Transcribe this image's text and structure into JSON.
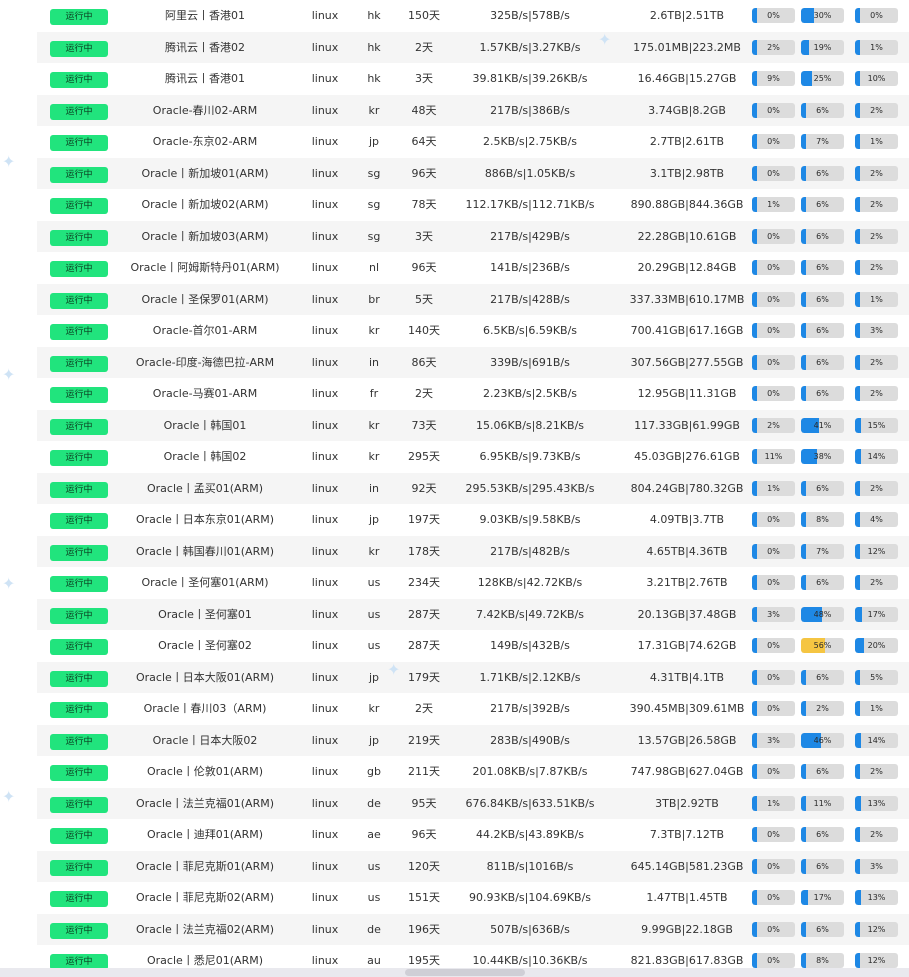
{
  "status_color": "#21e47d",
  "bar_color": "#1e88e5",
  "warn_color": "#f5c542",
  "rows": [
    {
      "status": "运行中",
      "name": "阿里云丨香港01",
      "os": "linux",
      "loc": "hk",
      "uptime": "150天",
      "net": "325B/s|578B/s",
      "traffic": "2.6TB|2.51TB",
      "cpu": 0,
      "cpu_label": "0%",
      "mem": 30,
      "mem_label": "30%",
      "disk": 0,
      "disk_label": "0%"
    },
    {
      "status": "运行中",
      "name": "腾讯云丨香港02",
      "os": "linux",
      "loc": "hk",
      "uptime": "2天",
      "net": "1.57KB/s|3.27KB/s",
      "traffic": "175.01MB|223.2MB",
      "cpu": 2,
      "cpu_label": "2%",
      "mem": 19,
      "mem_label": "19%",
      "disk": 1,
      "disk_label": "1%"
    },
    {
      "status": "运行中",
      "name": "腾讯云丨香港01",
      "os": "linux",
      "loc": "hk",
      "uptime": "3天",
      "net": "39.81KB/s|39.26KB/s",
      "traffic": "16.46GB|15.27GB",
      "cpu": 9,
      "cpu_label": "9%",
      "mem": 25,
      "mem_label": "25%",
      "disk": 10,
      "disk_label": "10%"
    },
    {
      "status": "运行中",
      "name": "Oracle-春川02-ARM",
      "os": "linux",
      "loc": "kr",
      "uptime": "48天",
      "net": "217B/s|386B/s",
      "traffic": "3.74GB|8.2GB",
      "cpu": 0,
      "cpu_label": "0%",
      "mem": 6,
      "mem_label": "6%",
      "disk": 2,
      "disk_label": "2%"
    },
    {
      "status": "运行中",
      "name": "Oracle-东京02-ARM",
      "os": "linux",
      "loc": "jp",
      "uptime": "64天",
      "net": "2.5KB/s|2.75KB/s",
      "traffic": "2.7TB|2.61TB",
      "cpu": 0,
      "cpu_label": "0%",
      "mem": 7,
      "mem_label": "7%",
      "disk": 1,
      "disk_label": "1%"
    },
    {
      "status": "运行中",
      "name": "Oracle丨新加坡01(ARM)",
      "os": "linux",
      "loc": "sg",
      "uptime": "96天",
      "net": "886B/s|1.05KB/s",
      "traffic": "3.1TB|2.98TB",
      "cpu": 0,
      "cpu_label": "0%",
      "mem": 6,
      "mem_label": "6%",
      "disk": 2,
      "disk_label": "2%"
    },
    {
      "status": "运行中",
      "name": "Oracle丨新加坡02(ARM)",
      "os": "linux",
      "loc": "sg",
      "uptime": "78天",
      "net": "112.17KB/s|112.71KB/s",
      "traffic": "890.88GB|844.36GB",
      "cpu": 1,
      "cpu_label": "1%",
      "mem": 6,
      "mem_label": "6%",
      "disk": 2,
      "disk_label": "2%"
    },
    {
      "status": "运行中",
      "name": "Oracle丨新加坡03(ARM)",
      "os": "linux",
      "loc": "sg",
      "uptime": "3天",
      "net": "217B/s|429B/s",
      "traffic": "22.28GB|10.61GB",
      "cpu": 0,
      "cpu_label": "0%",
      "mem": 6,
      "mem_label": "6%",
      "disk": 2,
      "disk_label": "2%"
    },
    {
      "status": "运行中",
      "name": "Oracle丨阿姆斯特丹01(ARM)",
      "os": "linux",
      "loc": "nl",
      "uptime": "96天",
      "net": "141B/s|236B/s",
      "traffic": "20.29GB|12.84GB",
      "cpu": 0,
      "cpu_label": "0%",
      "mem": 6,
      "mem_label": "6%",
      "disk": 2,
      "disk_label": "2%"
    },
    {
      "status": "运行中",
      "name": "Oracle丨圣保罗01(ARM)",
      "os": "linux",
      "loc": "br",
      "uptime": "5天",
      "net": "217B/s|428B/s",
      "traffic": "337.33MB|610.17MB",
      "cpu": 0,
      "cpu_label": "0%",
      "mem": 6,
      "mem_label": "6%",
      "disk": 1,
      "disk_label": "1%"
    },
    {
      "status": "运行中",
      "name": "Oracle-首尔01-ARM",
      "os": "linux",
      "loc": "kr",
      "uptime": "140天",
      "net": "6.5KB/s|6.59KB/s",
      "traffic": "700.41GB|617.16GB",
      "cpu": 0,
      "cpu_label": "0%",
      "mem": 6,
      "mem_label": "6%",
      "disk": 3,
      "disk_label": "3%"
    },
    {
      "status": "运行中",
      "name": "Oracle-印度-海德巴拉-ARM",
      "os": "linux",
      "loc": "in",
      "uptime": "86天",
      "net": "339B/s|691B/s",
      "traffic": "307.56GB|277.55GB",
      "cpu": 0,
      "cpu_label": "0%",
      "mem": 6,
      "mem_label": "6%",
      "disk": 2,
      "disk_label": "2%"
    },
    {
      "status": "运行中",
      "name": "Oracle-马赛01-ARM",
      "os": "linux",
      "loc": "fr",
      "uptime": "2天",
      "net": "2.23KB/s|2.5KB/s",
      "traffic": "12.95GB|11.31GB",
      "cpu": 0,
      "cpu_label": "0%",
      "mem": 6,
      "mem_label": "6%",
      "disk": 2,
      "disk_label": "2%"
    },
    {
      "status": "运行中",
      "name": "Oracle丨韩国01",
      "os": "linux",
      "loc": "kr",
      "uptime": "73天",
      "net": "15.06KB/s|8.21KB/s",
      "traffic": "117.33GB|61.99GB",
      "cpu": 2,
      "cpu_label": "2%",
      "mem": 41,
      "mem_label": "41%",
      "disk": 15,
      "disk_label": "15%"
    },
    {
      "status": "运行中",
      "name": "Oracle丨韩国02",
      "os": "linux",
      "loc": "kr",
      "uptime": "295天",
      "net": "6.95KB/s|9.73KB/s",
      "traffic": "45.03GB|276.61GB",
      "cpu": 11,
      "cpu_label": "11%",
      "mem": 38,
      "mem_label": "38%",
      "disk": 14,
      "disk_label": "14%"
    },
    {
      "status": "运行中",
      "name": "Oracle丨孟买01(ARM)",
      "os": "linux",
      "loc": "in",
      "uptime": "92天",
      "net": "295.53KB/s|295.43KB/s",
      "traffic": "804.24GB|780.32GB",
      "cpu": 1,
      "cpu_label": "1%",
      "mem": 6,
      "mem_label": "6%",
      "disk": 2,
      "disk_label": "2%"
    },
    {
      "status": "运行中",
      "name": "Oracle丨日本东京01(ARM)",
      "os": "linux",
      "loc": "jp",
      "uptime": "197天",
      "net": "9.03KB/s|9.58KB/s",
      "traffic": "4.09TB|3.7TB",
      "cpu": 0,
      "cpu_label": "0%",
      "mem": 8,
      "mem_label": "8%",
      "disk": 4,
      "disk_label": "4%"
    },
    {
      "status": "运行中",
      "name": "Oracle丨韩国春川01(ARM)",
      "os": "linux",
      "loc": "kr",
      "uptime": "178天",
      "net": "217B/s|482B/s",
      "traffic": "4.65TB|4.36TB",
      "cpu": 0,
      "cpu_label": "0%",
      "mem": 7,
      "mem_label": "7%",
      "disk": 12,
      "disk_label": "12%"
    },
    {
      "status": "运行中",
      "name": "Oracle丨圣何塞01(ARM)",
      "os": "linux",
      "loc": "us",
      "uptime": "234天",
      "net": "128KB/s|42.72KB/s",
      "traffic": "3.21TB|2.76TB",
      "cpu": 0,
      "cpu_label": "0%",
      "mem": 6,
      "mem_label": "6%",
      "disk": 2,
      "disk_label": "2%"
    },
    {
      "status": "运行中",
      "name": "Oracle丨圣何塞01",
      "os": "linux",
      "loc": "us",
      "uptime": "287天",
      "net": "7.42KB/s|49.72KB/s",
      "traffic": "20.13GB|37.48GB",
      "cpu": 3,
      "cpu_label": "3%",
      "mem": 48,
      "mem_label": "48%",
      "disk": 17,
      "disk_label": "17%"
    },
    {
      "status": "运行中",
      "name": "Oracle丨圣何塞02",
      "os": "linux",
      "loc": "us",
      "uptime": "287天",
      "net": "149B/s|432B/s",
      "traffic": "17.31GB|74.62GB",
      "cpu": 0,
      "cpu_label": "0%",
      "mem": 56,
      "mem_label": "56%",
      "disk": 20,
      "disk_label": "20%"
    },
    {
      "status": "运行中",
      "name": "Oracle丨日本大阪01(ARM)",
      "os": "linux",
      "loc": "jp",
      "uptime": "179天",
      "net": "1.71KB/s|2.12KB/s",
      "traffic": "4.31TB|4.1TB",
      "cpu": 0,
      "cpu_label": "0%",
      "mem": 6,
      "mem_label": "6%",
      "disk": 5,
      "disk_label": "5%"
    },
    {
      "status": "运行中",
      "name": "Oracle丨春川03（ARM)",
      "os": "linux",
      "loc": "kr",
      "uptime": "2天",
      "net": "217B/s|392B/s",
      "traffic": "390.45MB|309.61MB",
      "cpu": 0,
      "cpu_label": "0%",
      "mem": 2,
      "mem_label": "2%",
      "disk": 1,
      "disk_label": "1%"
    },
    {
      "status": "运行中",
      "name": "Oracle丨日本大阪02",
      "os": "linux",
      "loc": "jp",
      "uptime": "219天",
      "net": "283B/s|490B/s",
      "traffic": "13.57GB|26.58GB",
      "cpu": 3,
      "cpu_label": "3%",
      "mem": 46,
      "mem_label": "46%",
      "disk": 14,
      "disk_label": "14%"
    },
    {
      "status": "运行中",
      "name": "Oracle丨伦敦01(ARM)",
      "os": "linux",
      "loc": "gb",
      "uptime": "211天",
      "net": "201.08KB/s|7.87KB/s",
      "traffic": "747.98GB|627.04GB",
      "cpu": 0,
      "cpu_label": "0%",
      "mem": 6,
      "mem_label": "6%",
      "disk": 2,
      "disk_label": "2%"
    },
    {
      "status": "运行中",
      "name": "Oracle丨法兰克福01(ARM)",
      "os": "linux",
      "loc": "de",
      "uptime": "95天",
      "net": "676.84KB/s|633.51KB/s",
      "traffic": "3TB|2.92TB",
      "cpu": 1,
      "cpu_label": "1%",
      "mem": 11,
      "mem_label": "11%",
      "disk": 13,
      "disk_label": "13%"
    },
    {
      "status": "运行中",
      "name": "Oracle丨迪拜01(ARM)",
      "os": "linux",
      "loc": "ae",
      "uptime": "96天",
      "net": "44.2KB/s|43.89KB/s",
      "traffic": "7.3TB|7.12TB",
      "cpu": 0,
      "cpu_label": "0%",
      "mem": 6,
      "mem_label": "6%",
      "disk": 2,
      "disk_label": "2%"
    },
    {
      "status": "运行中",
      "name": "Oracle丨菲尼克斯01(ARM)",
      "os": "linux",
      "loc": "us",
      "uptime": "120天",
      "net": "811B/s|1016B/s",
      "traffic": "645.14GB|581.23GB",
      "cpu": 0,
      "cpu_label": "0%",
      "mem": 6,
      "mem_label": "6%",
      "disk": 3,
      "disk_label": "3%"
    },
    {
      "status": "运行中",
      "name": "Oracle丨菲尼克斯02(ARM)",
      "os": "linux",
      "loc": "us",
      "uptime": "151天",
      "net": "90.93KB/s|104.69KB/s",
      "traffic": "1.47TB|1.45TB",
      "cpu": 0,
      "cpu_label": "0%",
      "mem": 17,
      "mem_label": "17%",
      "disk": 13,
      "disk_label": "13%"
    },
    {
      "status": "运行中",
      "name": "Oracle丨法兰克福02(ARM)",
      "os": "linux",
      "loc": "de",
      "uptime": "196天",
      "net": "507B/s|636B/s",
      "traffic": "9.99GB|22.18GB",
      "cpu": 0,
      "cpu_label": "0%",
      "mem": 6,
      "mem_label": "6%",
      "disk": 12,
      "disk_label": "12%"
    },
    {
      "status": "运行中",
      "name": "Oracle丨悉尼01(ARM)",
      "os": "linux",
      "loc": "au",
      "uptime": "195天",
      "net": "10.44KB/s|10.36KB/s",
      "traffic": "821.83GB|617.83GB",
      "cpu": 0,
      "cpu_label": "0%",
      "mem": 8,
      "mem_label": "8%",
      "disk": 12,
      "disk_label": "12%"
    }
  ]
}
